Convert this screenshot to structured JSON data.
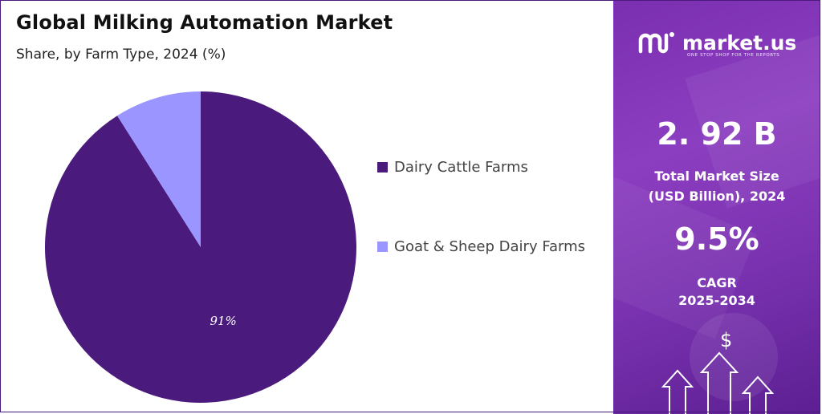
{
  "header": {
    "title": "Global Milking Automation Market",
    "subtitle": "Share, by Farm Type, 2024 (%)"
  },
  "chart_data": {
    "type": "pie",
    "title": "Global Milking Automation Market",
    "subtitle": "Share, by Farm Type, 2024 (%)",
    "categories": [
      "Dairy Cattle Farms",
      "Goat & Sheep Dairy Farms"
    ],
    "values": [
      91,
      9
    ],
    "colors": [
      "#4a1a7c",
      "#9a95ff"
    ],
    "data_labels": [
      "91%",
      ""
    ],
    "legend_position": "right"
  },
  "legend": {
    "items": [
      {
        "label": "Dairy Cattle Farms",
        "color": "#4a1a7c"
      },
      {
        "label": "Goat & Sheep Dairy Farms",
        "color": "#9a95ff"
      }
    ]
  },
  "brand": {
    "name": "market.us",
    "tagline": "ONE STOP SHOP FOR THE REPORTS",
    "icon": "market-us-logo-icon"
  },
  "stats": {
    "market_size_value": "2. 92 B",
    "market_size_label_line1": "Total Market Size",
    "market_size_label_line2": "(USD Billion), 2024",
    "cagr_value": "9.5%",
    "cagr_label_line1": "CAGR",
    "cagr_label_line2": "2025-2034"
  },
  "decor": {
    "dollar_symbol": "$",
    "accent": "#7a2fb0"
  }
}
